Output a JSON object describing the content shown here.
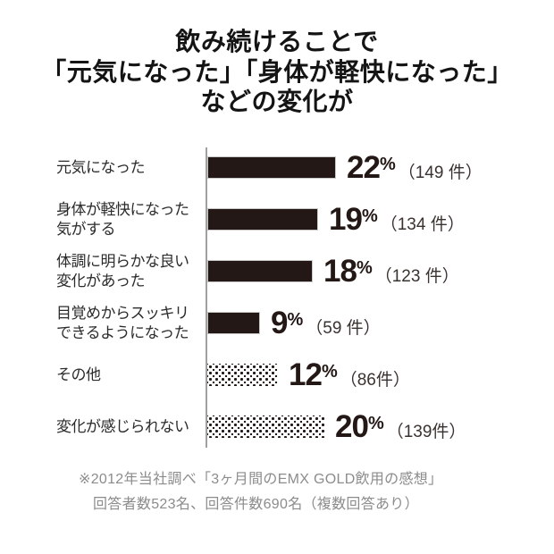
{
  "title": {
    "lines": [
      "飲み続けることで",
      "「元気になった」「身体が軽快になった」",
      "などの変化が"
    ]
  },
  "chart_data": {
    "type": "bar",
    "orientation": "horizontal",
    "unit": "%",
    "categories": [
      "元気になった",
      "身体が軽快になった気がする",
      "体調に明らかな良い変化があった",
      "目覚めからスッキリできるようになった",
      "その他",
      "変化が感じられない"
    ],
    "values": [
      22,
      19,
      18,
      9,
      12,
      20
    ],
    "counts": [
      149,
      134,
      123,
      59,
      86,
      139
    ],
    "count_labels": [
      "（149 件）",
      "（134 件）",
      "（123 件）",
      "（59 件）",
      "（86件）",
      "（139件）"
    ],
    "bar_styles": [
      "solid",
      "solid",
      "solid",
      "solid",
      "dotted",
      "dotted"
    ],
    "xlim": [
      0,
      22
    ],
    "grid": false,
    "legend": false,
    "colors": {
      "bar_solid": "#231815",
      "bar_dotted_pattern": "#231815",
      "axis": "#a0a0a0",
      "title_text": "#141414",
      "label_text": "#2b2b2b",
      "footnote_text": "#8c8c8c",
      "background": "#ffffff"
    }
  },
  "rows": [
    {
      "label1": "元気になった",
      "label2": "",
      "value": "22",
      "count": "（149 件）"
    },
    {
      "label1": "身体が軽快になった",
      "label2": "気がする",
      "value": "19",
      "count": "（134 件）"
    },
    {
      "label1": "体調に明らかな良い",
      "label2": "変化があった",
      "value": "18",
      "count": "（123 件）"
    },
    {
      "label1": "目覚めからスッキリ",
      "label2": "できるようになった",
      "value": "9",
      "count": "（59 件）"
    },
    {
      "label1": "その他",
      "label2": "",
      "value": "12",
      "count": "（86件）"
    },
    {
      "label1": "変化が感じられない",
      "label2": "",
      "value": "20",
      "count": "（139件）"
    }
  ],
  "footnote": {
    "lines": [
      "※2012年当社調べ「3ヶ月間のEMX GOLD飲用の感想」",
      "回答者数523名、回答件数690名（複数回答あり）"
    ]
  }
}
